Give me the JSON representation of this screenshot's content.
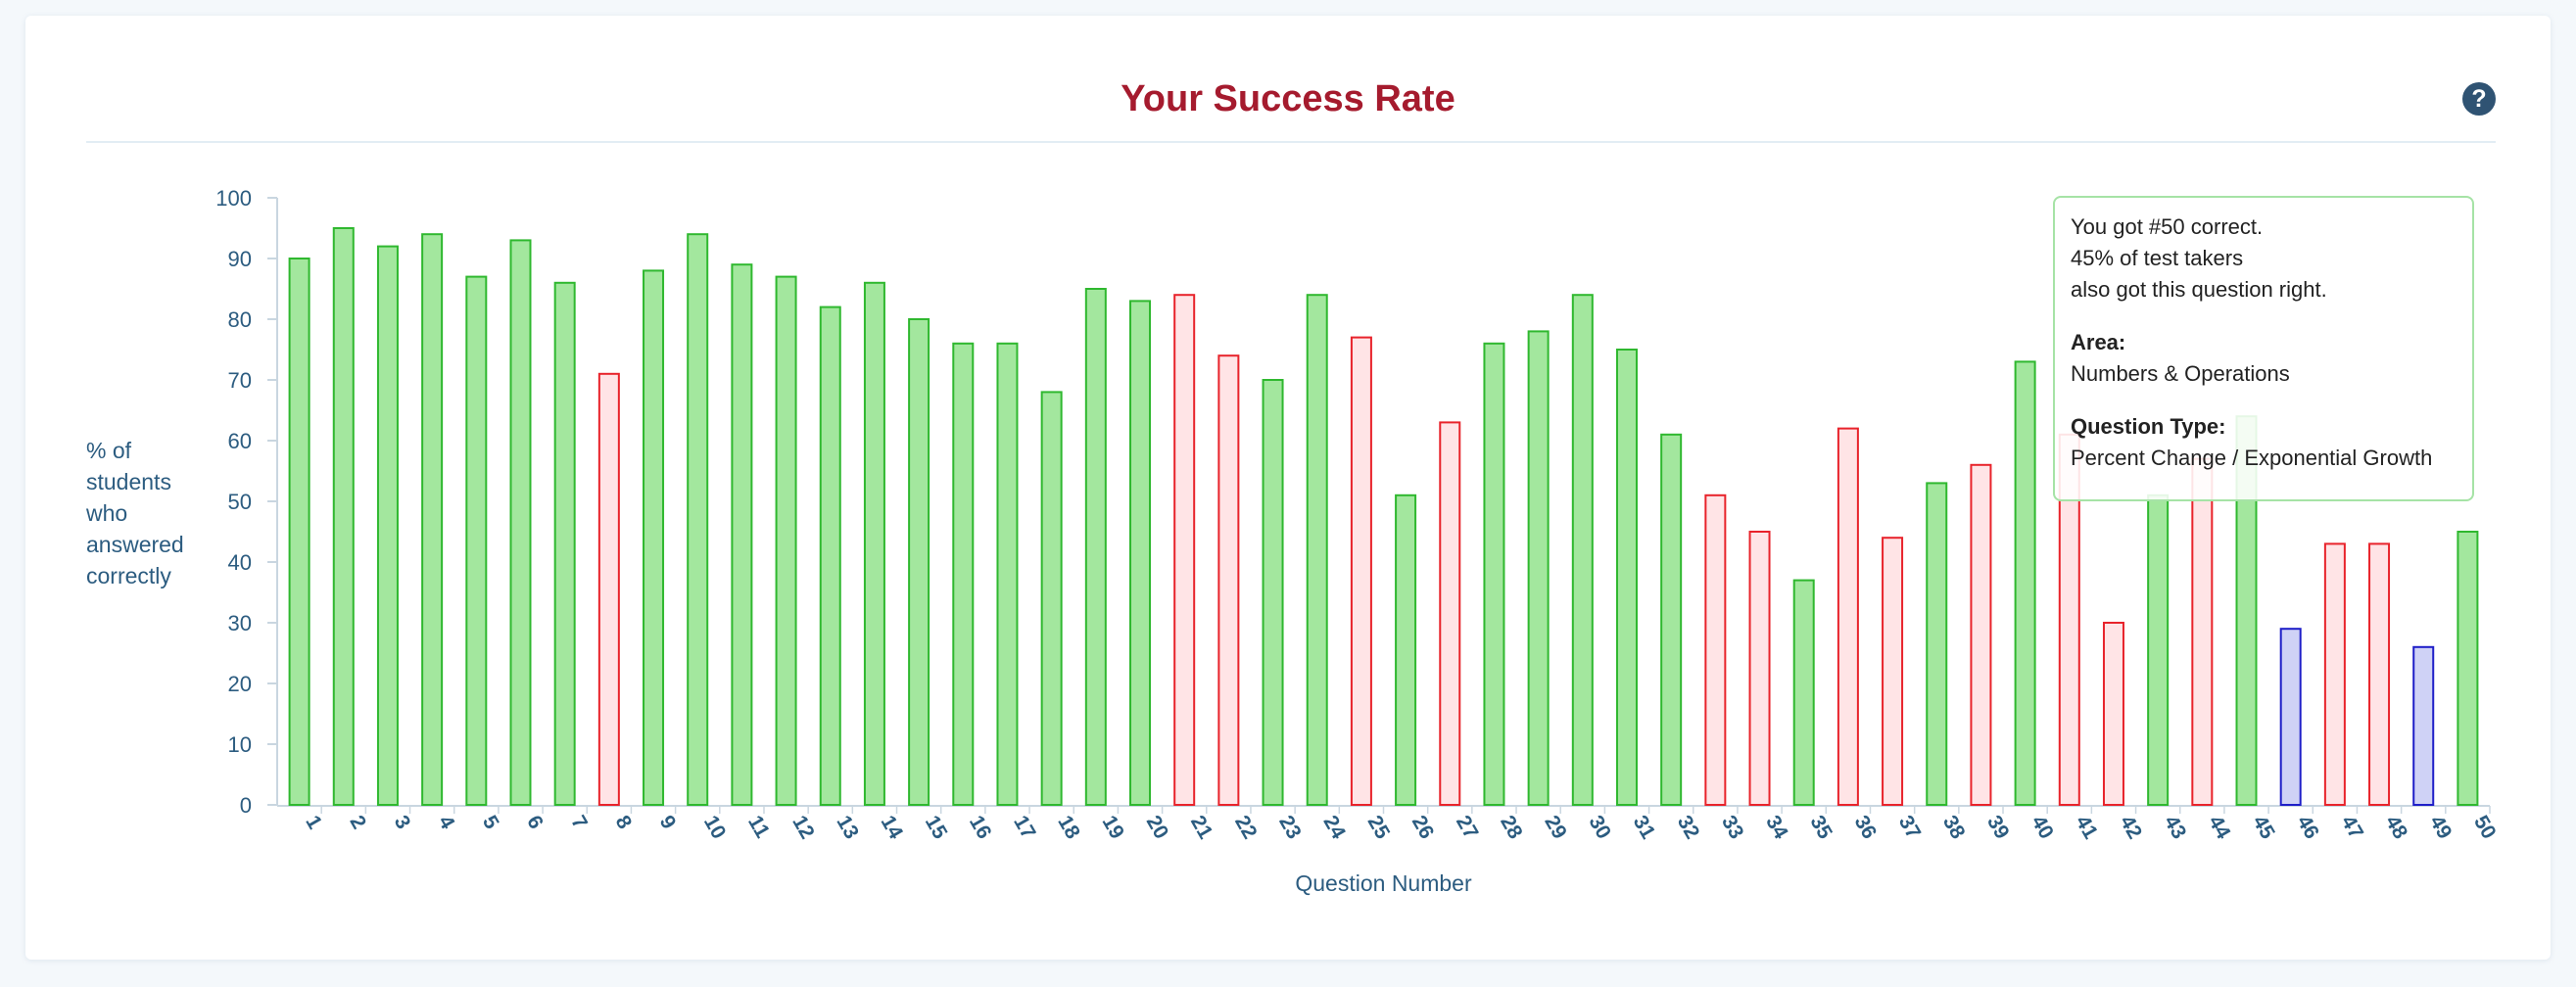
{
  "header": {
    "title": "Your Success Rate",
    "help_icon": "question-circle-icon"
  },
  "colors": {
    "title": "#a51b2e",
    "axis_text": "#2c5c80",
    "correct_fill": "#a3e79e",
    "correct_stroke": "#2fb82f",
    "incorrect_fill": "#ffe4e6",
    "incorrect_stroke": "#e8232b",
    "omitted_fill": "#cfd2f6",
    "omitted_stroke": "#1e1ec8"
  },
  "chart_data": {
    "type": "bar",
    "title": "Your Success Rate",
    "xlabel": "Question Number",
    "ylabel": "% of students who answered correctly",
    "ylim": [
      0,
      100
    ],
    "yticks": [
      0,
      10,
      20,
      30,
      40,
      50,
      60,
      70,
      80,
      90,
      100
    ],
    "grid": false,
    "categories": [
      "1",
      "2",
      "3",
      "4",
      "5",
      "6",
      "7",
      "8",
      "9",
      "10",
      "11",
      "12",
      "13",
      "14",
      "15",
      "16",
      "17",
      "18",
      "19",
      "20",
      "21",
      "22",
      "23",
      "24",
      "25",
      "26",
      "27",
      "28",
      "29",
      "30",
      "31",
      "32",
      "33",
      "34",
      "35",
      "36",
      "37",
      "38",
      "39",
      "40",
      "41",
      "42",
      "43",
      "44",
      "45",
      "46",
      "47",
      "48",
      "49",
      "50"
    ],
    "values": [
      90,
      95,
      92,
      94,
      87,
      93,
      86,
      71,
      88,
      94,
      89,
      87,
      82,
      86,
      80,
      76,
      76,
      68,
      85,
      83,
      84,
      74,
      70,
      84,
      77,
      51,
      63,
      76,
      78,
      84,
      75,
      61,
      51,
      45,
      37,
      62,
      44,
      53,
      56,
      73,
      61,
      30,
      51,
      57,
      64,
      29,
      43,
      43,
      26,
      45
    ],
    "status": [
      "correct",
      "correct",
      "correct",
      "correct",
      "correct",
      "correct",
      "correct",
      "incorrect",
      "correct",
      "correct",
      "correct",
      "correct",
      "correct",
      "correct",
      "correct",
      "correct",
      "correct",
      "correct",
      "correct",
      "correct",
      "incorrect",
      "incorrect",
      "correct",
      "correct",
      "incorrect",
      "correct",
      "incorrect",
      "correct",
      "correct",
      "correct",
      "correct",
      "correct",
      "incorrect",
      "incorrect",
      "correct",
      "incorrect",
      "incorrect",
      "correct",
      "incorrect",
      "correct",
      "incorrect",
      "incorrect",
      "correct",
      "incorrect",
      "correct",
      "omitted",
      "incorrect",
      "incorrect",
      "omitted",
      "correct"
    ]
  },
  "tooltip": {
    "line1": "You got #50 correct.",
    "line2": "45% of test takers",
    "line3": "also got this question right.",
    "area_label": "Area:",
    "area_value": "Numbers & Operations",
    "type_label": "Question Type:",
    "type_value": "Percent Change / Exponential Growth"
  }
}
